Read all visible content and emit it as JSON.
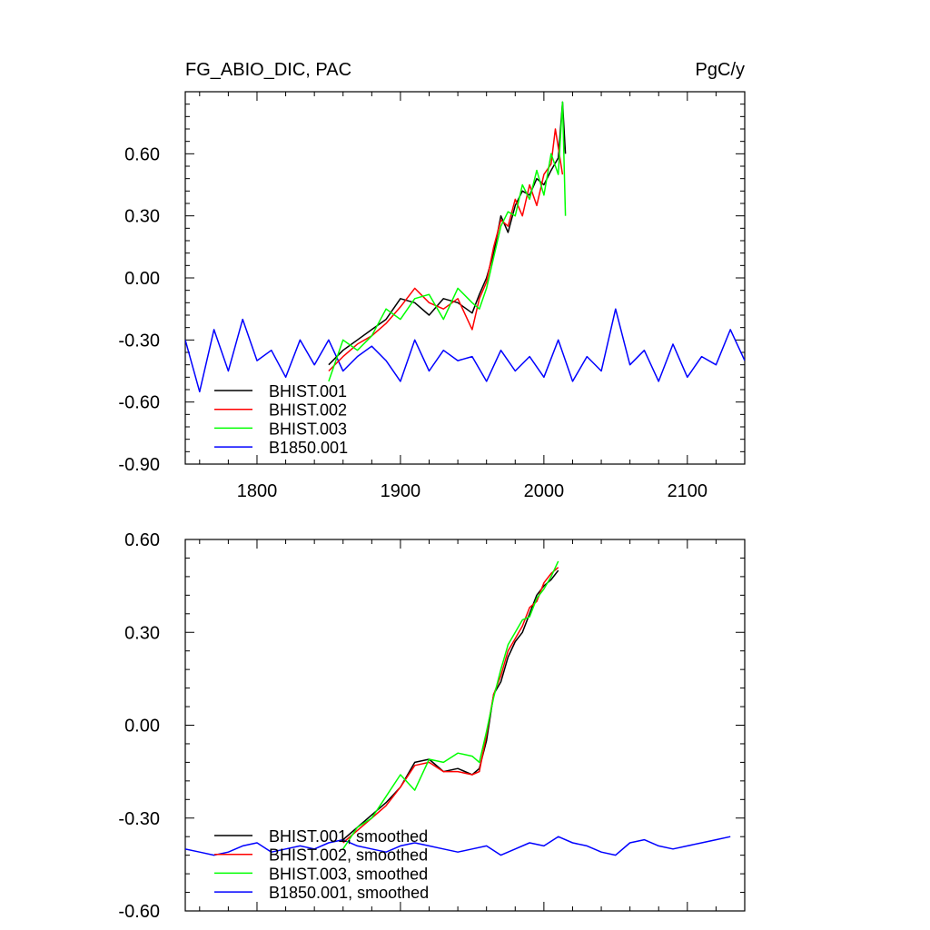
{
  "chart_data": [
    {
      "type": "line",
      "title": "FG_ABIO_DIC, PAC",
      "units": "PgC/y",
      "xlim": [
        1750,
        2140
      ],
      "ylim": [
        -0.9,
        0.9
      ],
      "xticks": [
        1800,
        1900,
        2000,
        2100
      ],
      "xtick_labels": [
        "1800",
        "1900",
        "2000",
        "2100"
      ],
      "yticks": [
        -0.9,
        -0.6,
        -0.3,
        0.0,
        0.3,
        0.6
      ],
      "ytick_labels": [
        "-0.90",
        "-0.60",
        "-0.30",
        "0.00",
        "0.30",
        "0.60"
      ],
      "grid": false,
      "legend_position": "bottom-left",
      "series": [
        {
          "name": "BHIST.001",
          "color": "#000000",
          "x": [
            1850,
            1860,
            1870,
            1880,
            1890,
            1900,
            1910,
            1920,
            1930,
            1940,
            1950,
            1955,
            1960,
            1965,
            1970,
            1975,
            1980,
            1985,
            1990,
            1995,
            2000,
            2005,
            2010,
            2013,
            2015
          ],
          "y": [
            -0.42,
            -0.35,
            -0.3,
            -0.25,
            -0.2,
            -0.1,
            -0.12,
            -0.18,
            -0.1,
            -0.12,
            -0.17,
            -0.08,
            0.0,
            0.12,
            0.3,
            0.22,
            0.35,
            0.42,
            0.4,
            0.48,
            0.45,
            0.52,
            0.58,
            0.85,
            0.6
          ]
        },
        {
          "name": "BHIST.002",
          "color": "#ff0000",
          "x": [
            1850,
            1860,
            1870,
            1880,
            1890,
            1900,
            1910,
            1920,
            1930,
            1940,
            1950,
            1955,
            1960,
            1965,
            1970,
            1975,
            1980,
            1985,
            1990,
            1995,
            2000,
            2005,
            2008,
            2013
          ],
          "y": [
            -0.45,
            -0.38,
            -0.32,
            -0.28,
            -0.22,
            -0.14,
            -0.05,
            -0.12,
            -0.15,
            -0.1,
            -0.25,
            -0.1,
            -0.02,
            0.15,
            0.28,
            0.25,
            0.38,
            0.3,
            0.45,
            0.35,
            0.5,
            0.55,
            0.72,
            0.5
          ]
        },
        {
          "name": "BHIST.003",
          "color": "#00ff00",
          "x": [
            1850,
            1860,
            1870,
            1880,
            1890,
            1900,
            1910,
            1920,
            1930,
            1940,
            1950,
            1955,
            1960,
            1965,
            1970,
            1975,
            1980,
            1985,
            1990,
            1995,
            2000,
            2005,
            2010,
            2013,
            2015
          ],
          "y": [
            -0.5,
            -0.3,
            -0.35,
            -0.28,
            -0.15,
            -0.2,
            -0.1,
            -0.08,
            -0.2,
            -0.05,
            -0.12,
            -0.15,
            -0.05,
            0.1,
            0.25,
            0.32,
            0.3,
            0.45,
            0.38,
            0.52,
            0.4,
            0.6,
            0.5,
            0.85,
            0.3
          ]
        },
        {
          "name": "B1850.001",
          "color": "#0000ff",
          "x": [
            1750,
            1760,
            1770,
            1780,
            1790,
            1800,
            1810,
            1820,
            1830,
            1840,
            1850,
            1860,
            1870,
            1880,
            1890,
            1900,
            1910,
            1920,
            1930,
            1940,
            1950,
            1960,
            1970,
            1980,
            1990,
            2000,
            2010,
            2020,
            2030,
            2040,
            2050,
            2060,
            2070,
            2080,
            2090,
            2100,
            2110,
            2120,
            2130,
            2140
          ],
          "y": [
            -0.3,
            -0.55,
            -0.25,
            -0.45,
            -0.2,
            -0.4,
            -0.35,
            -0.48,
            -0.3,
            -0.42,
            -0.3,
            -0.45,
            -0.38,
            -0.33,
            -0.4,
            -0.5,
            -0.3,
            -0.45,
            -0.35,
            -0.4,
            -0.38,
            -0.5,
            -0.35,
            -0.45,
            -0.38,
            -0.48,
            -0.3,
            -0.5,
            -0.38,
            -0.45,
            -0.15,
            -0.42,
            -0.35,
            -0.5,
            -0.32,
            -0.48,
            -0.38,
            -0.42,
            -0.25,
            -0.4
          ]
        }
      ]
    },
    {
      "type": "line",
      "xlim": [
        1750,
        2140
      ],
      "ylim": [
        -0.6,
        0.6
      ],
      "xticks": [
        1800,
        1900,
        2000,
        2100
      ],
      "yticks": [
        -0.6,
        -0.3,
        0.0,
        0.3,
        0.6
      ],
      "ytick_labels": [
        "-0.60",
        "-0.30",
        "0.00",
        "0.30",
        "0.60"
      ],
      "grid": false,
      "legend_position": "bottom-left",
      "series": [
        {
          "name": "BHIST.001, smoothed",
          "color": "#000000",
          "x": [
            1860,
            1870,
            1880,
            1890,
            1900,
            1910,
            1920,
            1930,
            1940,
            1950,
            1955,
            1960,
            1965,
            1970,
            1975,
            1980,
            1985,
            1990,
            1995,
            2000,
            2005,
            2010
          ],
          "y": [
            -0.37,
            -0.33,
            -0.29,
            -0.25,
            -0.2,
            -0.12,
            -0.11,
            -0.15,
            -0.14,
            -0.16,
            -0.14,
            -0.05,
            0.1,
            0.14,
            0.22,
            0.27,
            0.3,
            0.36,
            0.42,
            0.45,
            0.47,
            0.5
          ]
        },
        {
          "name": "BHIST.002, smoothed",
          "color": "#ff0000",
          "x": [
            1860,
            1870,
            1880,
            1890,
            1900,
            1910,
            1920,
            1930,
            1940,
            1950,
            1955,
            1960,
            1965,
            1970,
            1975,
            1980,
            1985,
            1990,
            1995,
            2000,
            2005,
            2010
          ],
          "y": [
            -0.38,
            -0.34,
            -0.3,
            -0.26,
            -0.2,
            -0.13,
            -0.12,
            -0.15,
            -0.15,
            -0.16,
            -0.15,
            -0.03,
            0.1,
            0.16,
            0.24,
            0.28,
            0.32,
            0.38,
            0.4,
            0.46,
            0.49,
            0.51
          ]
        },
        {
          "name": "BHIST.003, smoothed",
          "color": "#00ff00",
          "x": [
            1860,
            1870,
            1880,
            1890,
            1900,
            1910,
            1920,
            1930,
            1940,
            1950,
            1955,
            1960,
            1965,
            1970,
            1975,
            1980,
            1985,
            1990,
            1995,
            2000,
            2005,
            2010
          ],
          "y": [
            -0.4,
            -0.33,
            -0.3,
            -0.23,
            -0.16,
            -0.21,
            -0.11,
            -0.12,
            -0.09,
            -0.1,
            -0.12,
            -0.02,
            0.09,
            0.18,
            0.26,
            0.3,
            0.34,
            0.35,
            0.41,
            0.44,
            0.48,
            0.53
          ]
        },
        {
          "name": "B1850.001, smoothed",
          "color": "#0000ff",
          "x": [
            1750,
            1760,
            1770,
            1780,
            1790,
            1800,
            1810,
            1820,
            1830,
            1840,
            1850,
            1860,
            1870,
            1880,
            1890,
            1900,
            1910,
            1920,
            1930,
            1940,
            1950,
            1960,
            1970,
            1980,
            1990,
            2000,
            2010,
            2020,
            2030,
            2040,
            2050,
            2060,
            2070,
            2080,
            2090,
            2100,
            2110,
            2120,
            2130
          ],
          "y": [
            -0.4,
            -0.41,
            -0.42,
            -0.41,
            -0.39,
            -0.38,
            -0.41,
            -0.4,
            -0.39,
            -0.4,
            -0.38,
            -0.37,
            -0.39,
            -0.4,
            -0.41,
            -0.39,
            -0.38,
            -0.39,
            -0.4,
            -0.41,
            -0.4,
            -0.39,
            -0.42,
            -0.4,
            -0.38,
            -0.39,
            -0.36,
            -0.38,
            -0.39,
            -0.41,
            -0.42,
            -0.38,
            -0.37,
            -0.39,
            -0.4,
            -0.39,
            -0.38,
            -0.37,
            -0.36
          ]
        }
      ]
    }
  ]
}
